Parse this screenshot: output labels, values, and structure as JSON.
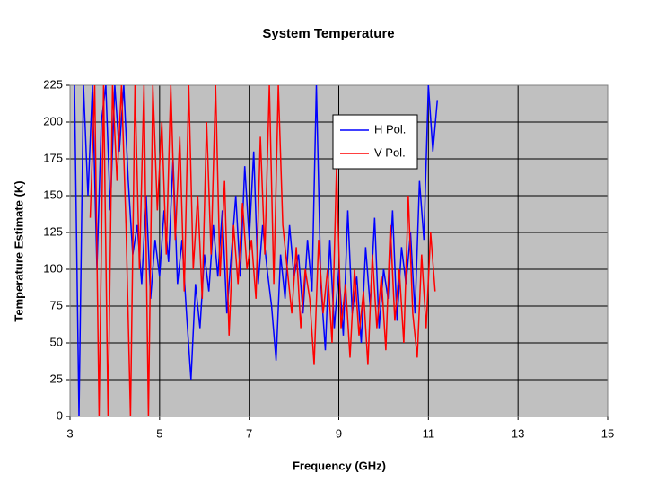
{
  "chart_data": {
    "type": "line",
    "title": "System Temperature",
    "x_label": "Frequency (GHz)",
    "y_label": "Temperature Estimate (K)",
    "xlim": [
      3,
      15
    ],
    "xticks": [
      3,
      5,
      7,
      9,
      11,
      13,
      15
    ],
    "ylim": [
      0,
      225
    ],
    "yticks": [
      0,
      25,
      50,
      75,
      100,
      125,
      150,
      175,
      200,
      225
    ],
    "grid": true,
    "legend": "upper-center",
    "background": "#c0c0c0",
    "series": [
      {
        "name": "H Pol.",
        "color": "#0000ff",
        "x": [
          3.1,
          3.2,
          3.3,
          3.4,
          3.5,
          3.6,
          3.7,
          3.8,
          3.9,
          4.0,
          4.1,
          4.2,
          4.3,
          4.4,
          4.5,
          4.6,
          4.7,
          4.8,
          4.9,
          5.0,
          5.1,
          5.2,
          5.3,
          5.4,
          5.5,
          5.6,
          5.7,
          5.8,
          5.9,
          6.0,
          6.1,
          6.2,
          6.3,
          6.4,
          6.5,
          6.6,
          6.7,
          6.8,
          6.9,
          7.0,
          7.1,
          7.2,
          7.3,
          7.4,
          7.5,
          7.6,
          7.7,
          7.8,
          7.9,
          8.0,
          8.1,
          8.2,
          8.3,
          8.4,
          8.5,
          8.6,
          8.7,
          8.8,
          8.9,
          9.0,
          9.1,
          9.2,
          9.3,
          9.4,
          9.5,
          9.6,
          9.7,
          9.8,
          9.9,
          10.0,
          10.1,
          10.2,
          10.3,
          10.4,
          10.5,
          10.6,
          10.7,
          10.8,
          10.9,
          11.0,
          11.1,
          11.2
        ],
        "values": [
          225,
          0,
          225,
          150,
          225,
          100,
          200,
          225,
          140,
          225,
          180,
          225,
          160,
          110,
          130,
          90,
          150,
          80,
          120,
          95,
          140,
          105,
          175,
          90,
          120,
          70,
          25,
          90,
          60,
          110,
          85,
          130,
          95,
          140,
          70,
          110,
          150,
          95,
          170,
          120,
          180,
          90,
          130,
          100,
          75,
          38,
          110,
          80,
          130,
          95,
          110,
          70,
          120,
          85,
          225,
          90,
          45,
          120,
          60,
          100,
          55,
          140,
          70,
          95,
          50,
          115,
          75,
          135,
          60,
          100,
          80,
          140,
          65,
          115,
          90,
          125,
          70,
          160,
          120,
          225,
          180,
          215
        ]
      },
      {
        "name": "V Pol.",
        "color": "#ff0000",
        "x": [
          3.45,
          3.55,
          3.65,
          3.75,
          3.85,
          3.95,
          4.05,
          4.15,
          4.25,
          4.35,
          4.45,
          4.55,
          4.65,
          4.75,
          4.85,
          4.95,
          5.05,
          5.15,
          5.25,
          5.35,
          5.45,
          5.55,
          5.65,
          5.75,
          5.85,
          5.95,
          6.05,
          6.15,
          6.25,
          6.35,
          6.45,
          6.55,
          6.65,
          6.75,
          6.85,
          6.95,
          7.05,
          7.15,
          7.25,
          7.35,
          7.45,
          7.55,
          7.65,
          7.75,
          7.85,
          7.95,
          8.05,
          8.15,
          8.25,
          8.35,
          8.45,
          8.55,
          8.65,
          8.75,
          8.85,
          8.95,
          9.05,
          9.15,
          9.25,
          9.35,
          9.45,
          9.55,
          9.65,
          9.75,
          9.85,
          9.95,
          10.05,
          10.15,
          10.25,
          10.35,
          10.45,
          10.55,
          10.65,
          10.75,
          10.85,
          10.95,
          11.05,
          11.15
        ],
        "values": [
          135,
          225,
          0,
          225,
          0,
          225,
          160,
          225,
          130,
          0,
          225,
          100,
          225,
          0,
          225,
          140,
          200,
          110,
          225,
          120,
          190,
          85,
          225,
          100,
          150,
          80,
          200,
          110,
          225,
          95,
          160,
          55,
          130,
          90,
          145,
          100,
          120,
          80,
          190,
          110,
          225,
          90,
          225,
          130,
          100,
          70,
          115,
          60,
          100,
          80,
          35,
          120,
          70,
          100,
          50,
          170,
          60,
          90,
          40,
          100,
          55,
          85,
          35,
          110,
          60,
          95,
          45,
          130,
          65,
          100,
          50,
          150,
          70,
          40,
          110,
          60,
          125,
          85
        ]
      }
    ]
  }
}
